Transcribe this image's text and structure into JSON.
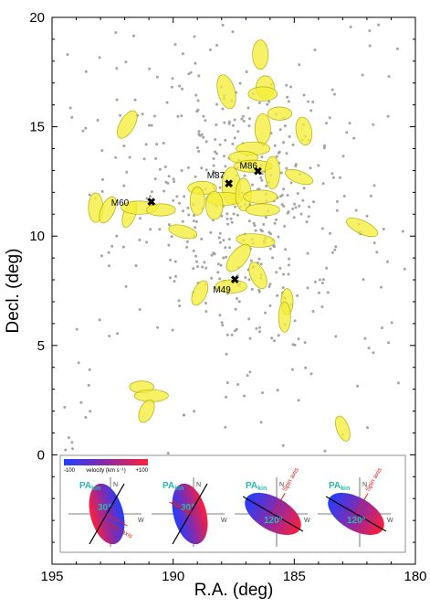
{
  "chart_data": {
    "type": "scatter",
    "xlabel": "R.A. (deg)",
    "ylabel": "Decl. (deg)",
    "xlim": [
      195,
      180
    ],
    "ylim": [
      -5,
      20
    ],
    "x_ticks": [
      195,
      190,
      185,
      180
    ],
    "y_ticks": [
      0,
      5,
      10,
      15,
      20
    ],
    "x_reversed": true,
    "grid": false,
    "background_points_color": "#9a9a9a",
    "ellipse_fill": "#f5ee3a",
    "ellipse_stroke": "#b5ab10",
    "galaxies": [
      {
        "name": "M60",
        "ra": 190.9,
        "dec": 11.55
      },
      {
        "name": "M87",
        "ra": 187.7,
        "dec": 12.4
      },
      {
        "name": "M86",
        "ra": 186.5,
        "dec": 12.95
      },
      {
        "name": "M49",
        "ra": 187.45,
        "dec": 8.0
      }
    ],
    "ellipses": [
      {
        "ra": 186.4,
        "dec": 18.3,
        "w": 0.65,
        "h": 1.35,
        "angle": 0
      },
      {
        "ra": 187.8,
        "dec": 16.6,
        "w": 0.7,
        "h": 1.6,
        "angle": 15
      },
      {
        "ra": 186.2,
        "dec": 16.8,
        "w": 0.75,
        "h": 1.05,
        "angle": 0
      },
      {
        "ra": 186.3,
        "dec": 16.5,
        "w": 1.2,
        "h": 0.65,
        "angle": 0
      },
      {
        "ra": 191.9,
        "dec": 15.1,
        "w": 0.6,
        "h": 1.4,
        "angle": -30
      },
      {
        "ra": 185.6,
        "dec": 15.6,
        "w": 1.0,
        "h": 0.6,
        "angle": 0
      },
      {
        "ra": 186.3,
        "dec": 14.9,
        "w": 0.65,
        "h": 1.4,
        "angle": 0
      },
      {
        "ra": 184.6,
        "dec": 14.8,
        "w": 0.65,
        "h": 1.3,
        "angle": 10
      },
      {
        "ra": 186.7,
        "dec": 14.0,
        "w": 1.4,
        "h": 0.6,
        "angle": 0
      },
      {
        "ra": 187.1,
        "dec": 13.6,
        "w": 1.2,
        "h": 0.55,
        "angle": 0
      },
      {
        "ra": 186.7,
        "dec": 13.2,
        "w": 1.6,
        "h": 0.55,
        "angle": 0
      },
      {
        "ra": 185.9,
        "dec": 12.9,
        "w": 0.6,
        "h": 1.5,
        "angle": 0
      },
      {
        "ra": 184.8,
        "dec": 12.7,
        "w": 1.2,
        "h": 0.55,
        "angle": -20
      },
      {
        "ra": 188.8,
        "dec": 12.2,
        "w": 1.2,
        "h": 0.6,
        "angle": 0
      },
      {
        "ra": 187.6,
        "dec": 12.3,
        "w": 0.75,
        "h": 1.7,
        "angle": 0
      },
      {
        "ra": 187.9,
        "dec": 11.7,
        "w": 1.5,
        "h": 0.6,
        "angle": 0
      },
      {
        "ra": 187.1,
        "dec": 11.9,
        "w": 0.65,
        "h": 1.5,
        "angle": 0
      },
      {
        "ra": 186.4,
        "dec": 11.8,
        "w": 1.4,
        "h": 0.6,
        "angle": 0
      },
      {
        "ra": 186.3,
        "dec": 11.2,
        "w": 1.4,
        "h": 0.55,
        "angle": 0
      },
      {
        "ra": 188.3,
        "dec": 11.4,
        "w": 0.7,
        "h": 1.3,
        "angle": 0
      },
      {
        "ra": 189.0,
        "dec": 11.6,
        "w": 0.6,
        "h": 1.3,
        "angle": 0
      },
      {
        "ra": 193.2,
        "dec": 11.3,
        "w": 0.6,
        "h": 1.35,
        "angle": 0
      },
      {
        "ra": 192.7,
        "dec": 11.2,
        "w": 0.55,
        "h": 1.3,
        "angle": -25
      },
      {
        "ra": 191.8,
        "dec": 11.0,
        "w": 0.5,
        "h": 1.25,
        "angle": -20
      },
      {
        "ra": 191.4,
        "dec": 11.3,
        "w": 1.5,
        "h": 0.6,
        "angle": 0
      },
      {
        "ra": 190.5,
        "dec": 11.2,
        "w": 1.2,
        "h": 0.55,
        "angle": 0
      },
      {
        "ra": 189.6,
        "dec": 10.2,
        "w": 1.2,
        "h": 0.55,
        "angle": -15
      },
      {
        "ra": 182.2,
        "dec": 10.4,
        "w": 1.4,
        "h": 0.6,
        "angle": -25
      },
      {
        "ra": 186.6,
        "dec": 9.8,
        "w": 1.6,
        "h": 0.6,
        "angle": -5
      },
      {
        "ra": 187.3,
        "dec": 9.0,
        "w": 0.65,
        "h": 1.5,
        "angle": -40
      },
      {
        "ra": 186.5,
        "dec": 8.2,
        "w": 0.6,
        "h": 1.3,
        "angle": 25
      },
      {
        "ra": 187.6,
        "dec": 7.7,
        "w": 1.3,
        "h": 0.6,
        "angle": 0
      },
      {
        "ra": 188.9,
        "dec": 7.4,
        "w": 0.55,
        "h": 1.2,
        "angle": -25
      },
      {
        "ra": 185.3,
        "dec": 7.0,
        "w": 0.5,
        "h": 1.2,
        "angle": 0
      },
      {
        "ra": 185.4,
        "dec": 6.3,
        "w": 0.5,
        "h": 1.4,
        "angle": 0
      },
      {
        "ra": 191.3,
        "dec": 3.1,
        "w": 1.0,
        "h": 0.55,
        "angle": 0
      },
      {
        "ra": 190.9,
        "dec": 2.7,
        "w": 1.4,
        "h": 0.55,
        "angle": 0
      },
      {
        "ra": 191.1,
        "dec": 2.0,
        "w": 0.55,
        "h": 1.1,
        "angle": -25
      },
      {
        "ra": 183.0,
        "dec": 1.2,
        "w": 0.5,
        "h": 1.2,
        "angle": 20
      }
    ]
  },
  "inset": {
    "colorbar": {
      "min_label": "-100",
      "max_label": "+100",
      "title": "velocity (km s⁻¹)"
    },
    "panels": [
      {
        "pa_label": "PA",
        "pa_sub": "kin",
        "angle_label": "30°",
        "spin_label": "Spin axis",
        "north": "N",
        "west": "W"
      },
      {
        "pa_label": "PA",
        "pa_sub": "kin",
        "angle_label": "30°",
        "spin_label": "Spin axis",
        "north": "N",
        "west": "W"
      },
      {
        "pa_label": "PA",
        "pa_sub": "kin",
        "angle_label": "120°",
        "spin_label": "Spin axis",
        "north": "N",
        "west": "W"
      },
      {
        "pa_label": "PA",
        "pa_sub": "kin",
        "angle_label": "120°",
        "spin_label": "Spin axis",
        "north": "N",
        "west": "W"
      }
    ]
  }
}
